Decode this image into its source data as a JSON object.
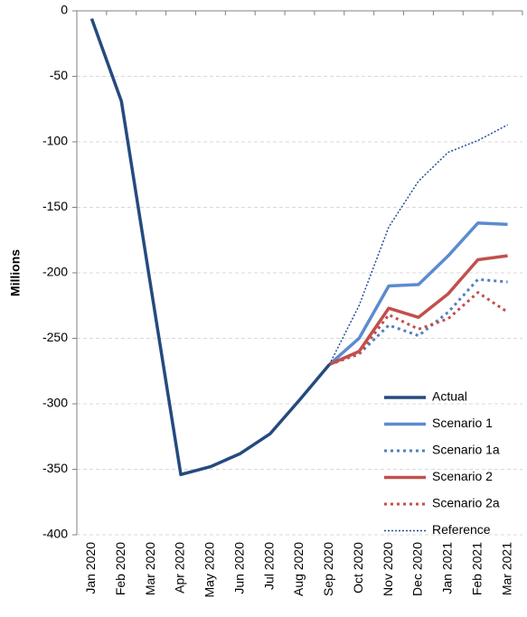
{
  "chart_data": {
    "type": "line",
    "ylabel": "Millions",
    "categories": [
      "Jan 2020",
      "Feb 2020",
      "Mar 2020",
      "Apr 2020",
      "May 2020",
      "Jun 2020",
      "Jul 2020",
      "Aug 2020",
      "Sep 2020",
      "Oct 2020",
      "Nov 2020",
      "Dec 2020",
      "Jan 2021",
      "Feb 2021",
      "Mar 2021"
    ],
    "series": [
      {
        "name": "Actual",
        "color": "#254a7f",
        "line_style": "solid",
        "line_width": 3.5,
        "values": [
          -6,
          -69,
          -212,
          -354,
          -348,
          -338,
          -323,
          -297,
          -270,
          null,
          null,
          null,
          null,
          null,
          null
        ]
      },
      {
        "name": "Scenario 1",
        "color": "#5b8bd0",
        "line_style": "solid",
        "line_width": 3.5,
        "values": [
          null,
          null,
          null,
          null,
          null,
          null,
          null,
          null,
          -270,
          -250,
          -210,
          -209,
          -187,
          -162,
          -163
        ]
      },
      {
        "name": "Scenario 1a",
        "color": "#4f81bd",
        "line_style": "dotted",
        "line_width": 3,
        "values": [
          null,
          null,
          null,
          null,
          null,
          null,
          null,
          null,
          -270,
          -262,
          -240,
          -248,
          -230,
          -205,
          -207
        ]
      },
      {
        "name": "Scenario 2",
        "color": "#c0504d",
        "line_style": "solid",
        "line_width": 3.5,
        "values": [
          null,
          null,
          null,
          null,
          null,
          null,
          null,
          null,
          -270,
          -260,
          -227,
          -234,
          -216,
          -190,
          -187
        ]
      },
      {
        "name": "Scenario 2a",
        "color": "#c0504d",
        "line_style": "dotted",
        "line_width": 3,
        "values": [
          null,
          null,
          null,
          null,
          null,
          null,
          null,
          null,
          -270,
          -262,
          -232,
          -243,
          -235,
          -215,
          -230
        ]
      },
      {
        "name": "Reference",
        "color": "#1f4e99",
        "line_style": "dotted",
        "line_width": 1.5,
        "values": [
          null,
          null,
          null,
          null,
          null,
          null,
          null,
          null,
          -270,
          -225,
          -165,
          -130,
          -108,
          -99,
          -87
        ]
      }
    ],
    "ylim": [
      -400,
      0
    ],
    "yticks": [
      0,
      -50,
      -100,
      -150,
      -200,
      -250,
      -300,
      -350,
      -400
    ],
    "grid": true,
    "legend": "lower right"
  }
}
